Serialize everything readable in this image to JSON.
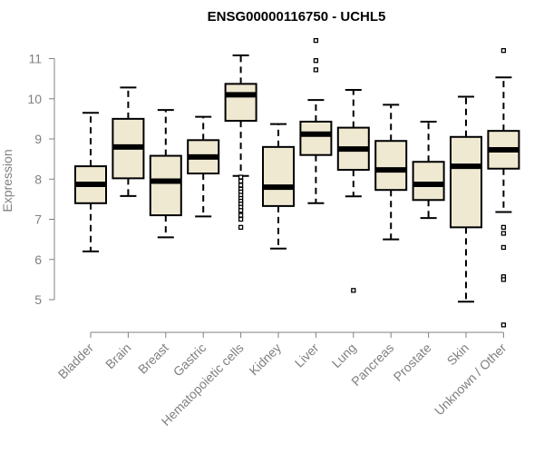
{
  "chart_data": {
    "type": "boxplot",
    "title": "ENSG00000116750 - UCHL5",
    "xlabel": "",
    "ylabel": "Expression",
    "ylim": [
      4.3,
      11.5
    ],
    "yticks": [
      5,
      6,
      7,
      8,
      9,
      10,
      11
    ],
    "colors": {
      "box_fill": "#efe9d2",
      "box_stroke": "#000000",
      "axis": "#808080",
      "title": "#000000"
    },
    "categories": [
      "Bladder",
      "Brain",
      "Breast",
      "Gastric",
      "Hematopoietic cells",
      "Kidney",
      "Liver",
      "Lung",
      "Pancreas",
      "Prostate",
      "Skin",
      "Unknown / Other"
    ],
    "boxes": [
      {
        "category": "Bladder",
        "whisker_low": 6.2,
        "q1": 7.4,
        "median": 7.87,
        "q3": 8.32,
        "whisker_high": 9.65,
        "outliers": []
      },
      {
        "category": "Brain",
        "whisker_low": 7.58,
        "q1": 8.02,
        "median": 8.8,
        "q3": 9.5,
        "whisker_high": 10.28,
        "outliers": []
      },
      {
        "category": "Breast",
        "whisker_low": 6.55,
        "q1": 7.1,
        "median": 7.95,
        "q3": 8.58,
        "whisker_high": 9.72,
        "outliers": []
      },
      {
        "category": "Gastric",
        "whisker_low": 7.07,
        "q1": 8.14,
        "median": 8.55,
        "q3": 8.97,
        "whisker_high": 9.55,
        "outliers": []
      },
      {
        "category": "Hematopoietic cells",
        "whisker_low": 8.08,
        "q1": 9.45,
        "median": 10.1,
        "q3": 10.37,
        "whisker_high": 11.08,
        "outliers": [
          8.05,
          7.95,
          7.85,
          7.75,
          7.68,
          7.6,
          7.52,
          7.45,
          7.38,
          7.3,
          7.22,
          7.1,
          7.0,
          6.8
        ]
      },
      {
        "category": "Kidney",
        "whisker_low": 6.27,
        "q1": 7.33,
        "median": 7.8,
        "q3": 8.8,
        "whisker_high": 9.37,
        "outliers": []
      },
      {
        "category": "Liver",
        "whisker_low": 7.4,
        "q1": 8.6,
        "median": 9.12,
        "q3": 9.43,
        "whisker_high": 9.97,
        "outliers": [
          10.72,
          10.95,
          11.45
        ]
      },
      {
        "category": "Lung",
        "whisker_low": 7.57,
        "q1": 8.23,
        "median": 8.75,
        "q3": 9.28,
        "whisker_high": 10.22,
        "outliers": [
          5.23
        ]
      },
      {
        "category": "Pancreas",
        "whisker_low": 6.5,
        "q1": 7.73,
        "median": 8.23,
        "q3": 8.95,
        "whisker_high": 9.85,
        "outliers": []
      },
      {
        "category": "Prostate",
        "whisker_low": 7.03,
        "q1": 7.48,
        "median": 7.87,
        "q3": 8.43,
        "whisker_high": 9.43,
        "outliers": []
      },
      {
        "category": "Skin",
        "whisker_low": 4.95,
        "q1": 6.8,
        "median": 8.32,
        "q3": 9.05,
        "whisker_high": 10.05,
        "outliers": []
      },
      {
        "category": "Unknown / Other",
        "whisker_low": 7.18,
        "q1": 8.26,
        "median": 8.73,
        "q3": 9.2,
        "whisker_high": 10.53,
        "outliers": [
          11.2,
          6.8,
          6.65,
          6.3,
          5.57,
          5.5,
          4.37
        ]
      }
    ]
  }
}
